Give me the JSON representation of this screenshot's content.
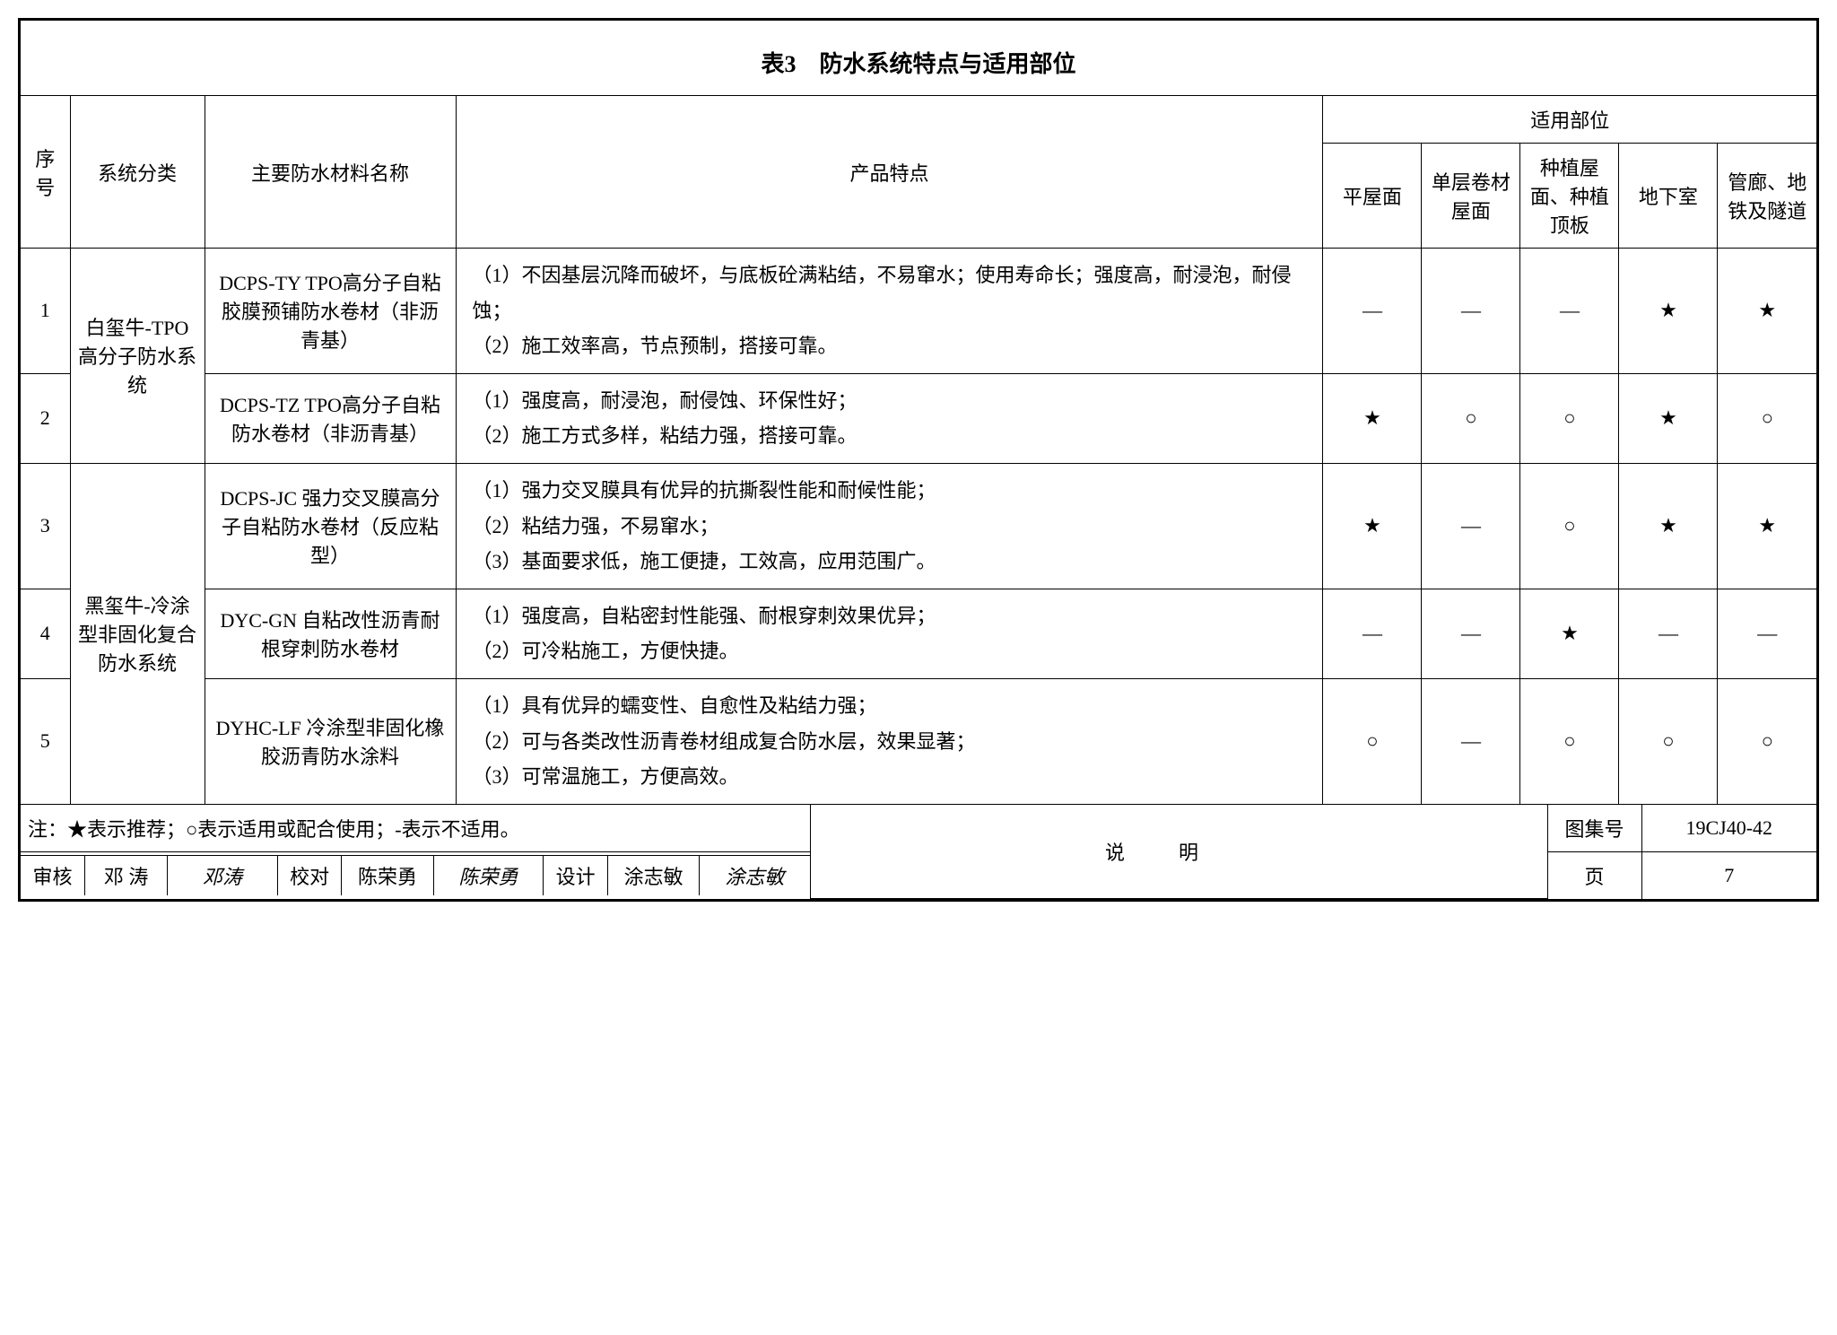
{
  "title": "表3　防水系统特点与适用部位",
  "columns": {
    "idx": "序号",
    "category": "系统分类",
    "material": "主要防水材料名称",
    "features": "产品特点",
    "applications_group": "适用部位",
    "app1": "平屋面",
    "app2": "单层卷材屋面",
    "app3": "种植屋面、种植顶板",
    "app4": "地下室",
    "app5": "管廊、地铁及隧道"
  },
  "categories": [
    {
      "name": "白玺牛-TPO高分子防水系统",
      "rowspan": 2
    },
    {
      "name": "黑玺牛-冷涂型非固化复合防水系统",
      "rowspan": 3
    }
  ],
  "rows": [
    {
      "idx": "1",
      "material": "DCPS-TY TPO高分子自粘胶膜预铺防水卷材（非沥青基）",
      "features": [
        "（1）不因基层沉降而破坏，与底板砼满粘结，不易窜水；使用寿命长；强度高，耐浸泡，耐侵蚀；",
        "（2）施工效率高，节点预制，搭接可靠。"
      ],
      "apps": [
        "—",
        "—",
        "—",
        "★",
        "★"
      ]
    },
    {
      "idx": "2",
      "material": "DCPS-TZ TPO高分子自粘防水卷材（非沥青基）",
      "features": [
        "（1）强度高，耐浸泡，耐侵蚀、环保性好；",
        "（2）施工方式多样，粘结力强，搭接可靠。"
      ],
      "apps": [
        "★",
        "○",
        "○",
        "★",
        "○"
      ]
    },
    {
      "idx": "3",
      "material": "DCPS-JC 强力交叉膜高分子自粘防水卷材（反应粘型）",
      "features": [
        "（1）强力交叉膜具有优异的抗撕裂性能和耐候性能；",
        "（2）粘结力强，不易窜水；",
        "（3）基面要求低，施工便捷，工效高，应用范围广。"
      ],
      "apps": [
        "★",
        "—",
        "○",
        "★",
        "★"
      ]
    },
    {
      "idx": "4",
      "material": "DYC-GN 自粘改性沥青耐根穿刺防水卷材",
      "features": [
        "（1）强度高，自粘密封性能强、耐根穿刺效果优异；",
        "（2）可冷粘施工，方便快捷。"
      ],
      "apps": [
        "—",
        "—",
        "★",
        "—",
        "—"
      ]
    },
    {
      "idx": "5",
      "material": "DYHC-LF 冷涂型非固化橡胶沥青防水涂料",
      "features": [
        "（1）具有优异的蠕变性、自愈性及粘结力强；",
        "（2）可与各类改性沥青卷材组成复合防水层，效果显著；",
        "（3）可常温施工，方便高效。"
      ],
      "apps": [
        "○",
        "—",
        "○",
        "○",
        "○"
      ]
    }
  ],
  "note": "注：★表示推荐；○表示适用或配合使用；-表示不适用。",
  "footer": {
    "heading": "说明",
    "atlas_label": "图集号",
    "atlas_value": "19CJ40-42",
    "review_label": "审核",
    "review_name": "邓 涛",
    "review_sig": "邓涛",
    "check_label": "校对",
    "check_name": "陈荣勇",
    "check_sig": "陈荣勇",
    "design_label": "设计",
    "design_name": "涂志敏",
    "design_sig": "涂志敏",
    "page_label": "页",
    "page_value": "7"
  }
}
